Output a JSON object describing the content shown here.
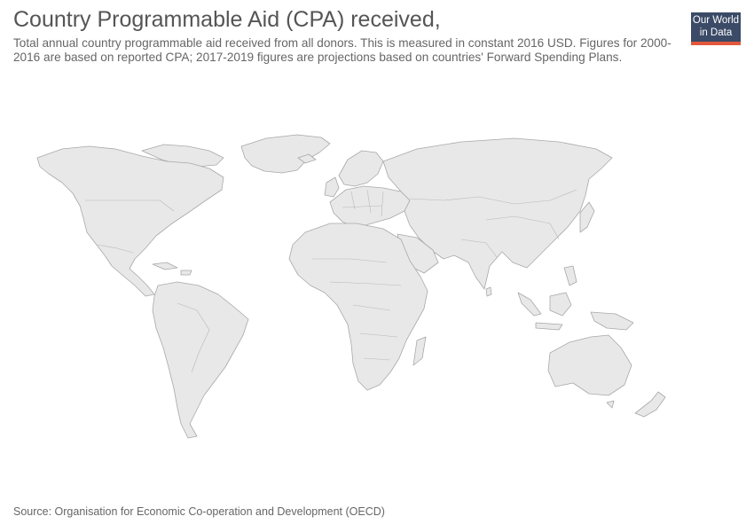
{
  "header": {
    "title": "Country Programmable Aid (CPA) received,",
    "subtitle": "Total annual country programmable aid received from all donors. This is measured in constant 2016 USD. Figures for 2000-2016 are based on reported CPA; 2017-2019 figures are projections based on countries' Forward Spending Plans."
  },
  "logo": {
    "line1": "Our World",
    "line2": "in Data",
    "bg_color": "#3b4a66",
    "accent_color": "#e2573b"
  },
  "map": {
    "land_color": "#e8e8e8",
    "border_color": "#a8a8a8"
  },
  "footer": {
    "source": "Source: Organisation for Economic Co-operation and Development (OECD)"
  }
}
